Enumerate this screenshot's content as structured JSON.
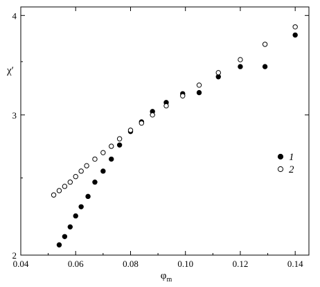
{
  "chart_data": {
    "type": "scatter",
    "xlabel": "φm",
    "xlabel_main": "φ",
    "xlabel_sub": "m",
    "ylabel": "χ′",
    "xlim": [
      0.04,
      0.145
    ],
    "ylim": [
      2,
      4.1
    ],
    "y_scale": "log",
    "x_ticks": [
      {
        "value": 0.04,
        "label": "0.04"
      },
      {
        "value": 0.06,
        "label": "0.06"
      },
      {
        "value": 0.08,
        "label": "0.08"
      },
      {
        "value": 0.1,
        "label": "0.10"
      },
      {
        "value": 0.12,
        "label": "0.12"
      },
      {
        "value": 0.14,
        "label": "0.14"
      }
    ],
    "y_ticks": [
      {
        "value": 2,
        "label": "2"
      },
      {
        "value": 3,
        "label": "3"
      },
      {
        "value": 4,
        "label": "4"
      }
    ],
    "legend_position": "right",
    "series": [
      {
        "name": "1",
        "marker": "filled-circle",
        "color": "#000000",
        "points": [
          [
            0.054,
            2.06
          ],
          [
            0.056,
            2.11
          ],
          [
            0.058,
            2.17
          ],
          [
            0.06,
            2.24
          ],
          [
            0.062,
            2.3
          ],
          [
            0.0645,
            2.37
          ],
          [
            0.067,
            2.47
          ],
          [
            0.07,
            2.55
          ],
          [
            0.073,
            2.64
          ],
          [
            0.076,
            2.75
          ],
          [
            0.08,
            2.86
          ],
          [
            0.084,
            2.94
          ],
          [
            0.088,
            3.03
          ],
          [
            0.093,
            3.11
          ],
          [
            0.099,
            3.19
          ],
          [
            0.105,
            3.2
          ],
          [
            0.112,
            3.35
          ],
          [
            0.12,
            3.45
          ],
          [
            0.129,
            3.45
          ],
          [
            0.14,
            3.78
          ]
        ]
      },
      {
        "name": "2",
        "marker": "open-circle",
        "color": "#000000",
        "points": [
          [
            0.052,
            2.38
          ],
          [
            0.054,
            2.41
          ],
          [
            0.056,
            2.44
          ],
          [
            0.058,
            2.47
          ],
          [
            0.06,
            2.51
          ],
          [
            0.062,
            2.55
          ],
          [
            0.064,
            2.59
          ],
          [
            0.067,
            2.64
          ],
          [
            0.07,
            2.69
          ],
          [
            0.073,
            2.74
          ],
          [
            0.076,
            2.8
          ],
          [
            0.08,
            2.87
          ],
          [
            0.084,
            2.93
          ],
          [
            0.088,
            3.0
          ],
          [
            0.093,
            3.08
          ],
          [
            0.099,
            3.17
          ],
          [
            0.105,
            3.27
          ],
          [
            0.112,
            3.39
          ],
          [
            0.12,
            3.52
          ],
          [
            0.129,
            3.68
          ],
          [
            0.14,
            3.87
          ]
        ]
      }
    ]
  }
}
